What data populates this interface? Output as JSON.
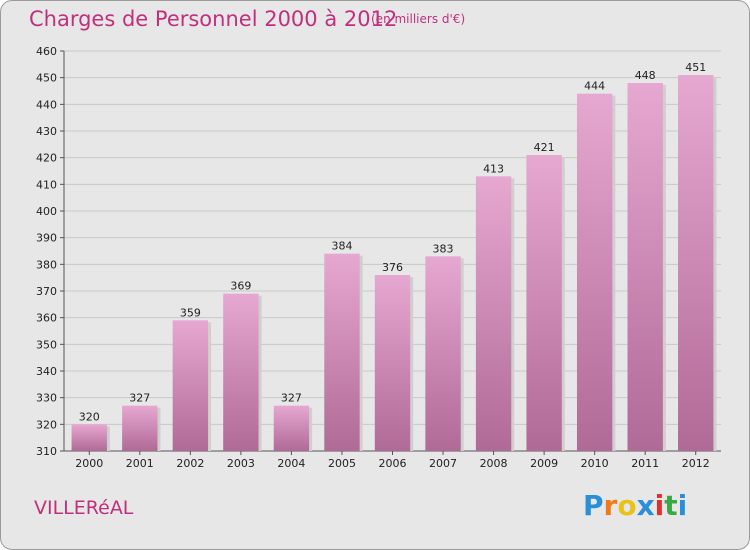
{
  "header": {
    "title": "Charges de Personnel 2000 à 2012",
    "subtitle": "(en milliers d'€)"
  },
  "footer": {
    "commune": "VILLERéAL",
    "logo_letters": [
      "P",
      "r",
      "o",
      "x",
      "i",
      "t",
      "i"
    ],
    "logo_colors": [
      "#2a8fd6",
      "#f07a1a",
      "#e8c21a",
      "#2a8fd6",
      "#e03030",
      "#3aa845",
      "#2a8fd6"
    ]
  },
  "chart_data": {
    "type": "bar",
    "title": "Charges de Personnel 2000 à 2012",
    "subtitle": "(en milliers d'€)",
    "categories": [
      "2000",
      "2001",
      "2002",
      "2003",
      "2004",
      "2005",
      "2006",
      "2007",
      "2008",
      "2009",
      "2010",
      "2011",
      "2012"
    ],
    "values": [
      320,
      327,
      359,
      369,
      327,
      384,
      376,
      383,
      413,
      421,
      444,
      448,
      451
    ],
    "ylim": [
      310,
      460
    ],
    "yticks": [
      "310",
      "320",
      "330",
      "340",
      "350",
      "360",
      "370",
      "380",
      "390",
      "400",
      "410",
      "420",
      "430",
      "440",
      "450",
      "460"
    ],
    "grid": true,
    "bar_color_top": "#e6a8d0",
    "bar_color_bottom": "#b06a96"
  }
}
